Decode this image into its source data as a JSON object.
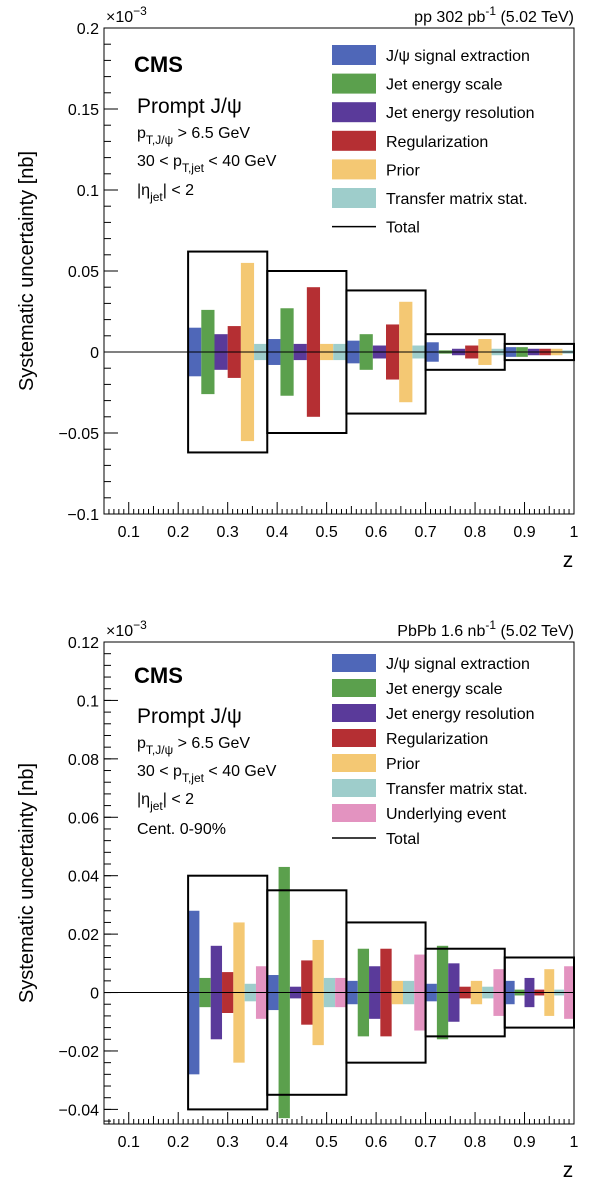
{
  "chart_data": [
    {
      "type": "bar",
      "ylabel": "Systematic uncertainty [nb]",
      "xlabel": "z",
      "y_multiplier": "×10",
      "y_multiplier_exp": "−3",
      "lumi_label": "pp 302 pb",
      "lumi_exp": "-1",
      "energy_label": "(5.02 TeV)",
      "experiment": "CMS",
      "selection_title": "Prompt J/ψ",
      "selection_lines": [
        {
          "main": "p",
          "sub": "T,J/ψ",
          "rest": " > 6.5 GeV"
        },
        {
          "main": "30 < p",
          "sub": "T,jet",
          "rest": " < 40 GeV"
        },
        {
          "main": "|η",
          "sub": "jet",
          "rest": "| < 2"
        }
      ],
      "xlim": [
        0.05,
        1.0
      ],
      "ylim": [
        -0.1,
        0.2
      ],
      "x_ticks": [
        "0.1",
        "0.2",
        "0.3",
        "0.4",
        "0.5",
        "0.6",
        "0.7",
        "0.8",
        "0.9",
        "1"
      ],
      "y_ticks": [
        "−0.1",
        "−0.05",
        "0",
        "0.05",
        "0.1",
        "0.15",
        "0.2"
      ],
      "bins": [
        [
          0.22,
          0.38
        ],
        [
          0.38,
          0.54
        ],
        [
          0.54,
          0.7
        ],
        [
          0.7,
          0.86
        ],
        [
          0.86,
          1.0
        ]
      ],
      "total": [
        0.062,
        0.05,
        0.038,
        0.011,
        0.005
      ],
      "series": [
        {
          "name": "J/ψ signal extraction",
          "color": "#4f67b8",
          "values": [
            0.015,
            0.008,
            0.007,
            0.006,
            0.003
          ]
        },
        {
          "name": "Jet energy scale",
          "color": "#5ba04d",
          "values": [
            0.026,
            0.027,
            0.011,
            0.001,
            0.003
          ]
        },
        {
          "name": "Jet energy resolution",
          "color": "#5a3a9a",
          "values": [
            0.011,
            0.005,
            0.004,
            0.002,
            0.002
          ]
        },
        {
          "name": "Regularization",
          "color": "#b52f33",
          "values": [
            0.016,
            0.04,
            0.017,
            0.004,
            0.002
          ]
        },
        {
          "name": "Prior",
          "color": "#f4c873",
          "values": [
            0.055,
            0.005,
            0.031,
            0.008,
            0.002
          ]
        },
        {
          "name": "Transfer matrix stat.",
          "color": "#9ecdcb",
          "values": [
            0.005,
            0.005,
            0.004,
            0.002,
            0.001
          ]
        }
      ],
      "total_label": "Total"
    },
    {
      "type": "bar",
      "ylabel": "Systematic uncertainty [nb]",
      "xlabel": "z",
      "y_multiplier": "×10",
      "y_multiplier_exp": "−3",
      "lumi_label": "PbPb 1.6 nb",
      "lumi_exp": "-1",
      "energy_label": "(5.02 TeV)",
      "experiment": "CMS",
      "selection_title": "Prompt J/ψ",
      "selection_lines": [
        {
          "main": "p",
          "sub": "T,J/ψ",
          "rest": " > 6.5 GeV"
        },
        {
          "main": "30 < p",
          "sub": "T,jet",
          "rest": " < 40 GeV"
        },
        {
          "main": "|η",
          "sub": "jet",
          "rest": "| < 2"
        },
        {
          "main": "Cent. 0-90%",
          "sub": "",
          "rest": ""
        }
      ],
      "xlim": [
        0.05,
        1.0
      ],
      "ylim": [
        -0.045,
        0.12
      ],
      "x_ticks": [
        "0.1",
        "0.2",
        "0.3",
        "0.4",
        "0.5",
        "0.6",
        "0.7",
        "0.8",
        "0.9",
        "1"
      ],
      "y_ticks": [
        "−0.04",
        "−0.02",
        "0",
        "0.02",
        "0.04",
        "0.06",
        "0.08",
        "0.1",
        "0.12"
      ],
      "bins": [
        [
          0.22,
          0.38
        ],
        [
          0.38,
          0.54
        ],
        [
          0.54,
          0.7
        ],
        [
          0.7,
          0.86
        ],
        [
          0.86,
          1.0
        ]
      ],
      "total": [
        0.04,
        0.035,
        0.024,
        0.015,
        0.012
      ],
      "series": [
        {
          "name": "J/ψ signal extraction",
          "color": "#4f67b8",
          "values": [
            0.028,
            0.006,
            0.004,
            0.003,
            0.004
          ]
        },
        {
          "name": "Jet energy scale",
          "color": "#5ba04d",
          "values": [
            0.005,
            0.043,
            0.015,
            0.016,
            0.001
          ]
        },
        {
          "name": "Jet energy resolution",
          "color": "#5a3a9a",
          "values": [
            0.016,
            0.002,
            0.009,
            0.01,
            0.005
          ]
        },
        {
          "name": "Regularization",
          "color": "#b52f33",
          "values": [
            0.007,
            0.011,
            0.015,
            0.002,
            0.001
          ]
        },
        {
          "name": "Prior",
          "color": "#f4c873",
          "values": [
            0.024,
            0.018,
            0.004,
            0.004,
            0.008
          ]
        },
        {
          "name": "Transfer matrix stat.",
          "color": "#9ecdcb",
          "values": [
            0.003,
            0.005,
            0.004,
            0.002,
            0.001
          ]
        },
        {
          "name": "Underlying event",
          "color": "#e393c0",
          "values": [
            0.009,
            0.005,
            0.013,
            0.008,
            0.009
          ]
        }
      ],
      "total_label": "Total"
    }
  ]
}
